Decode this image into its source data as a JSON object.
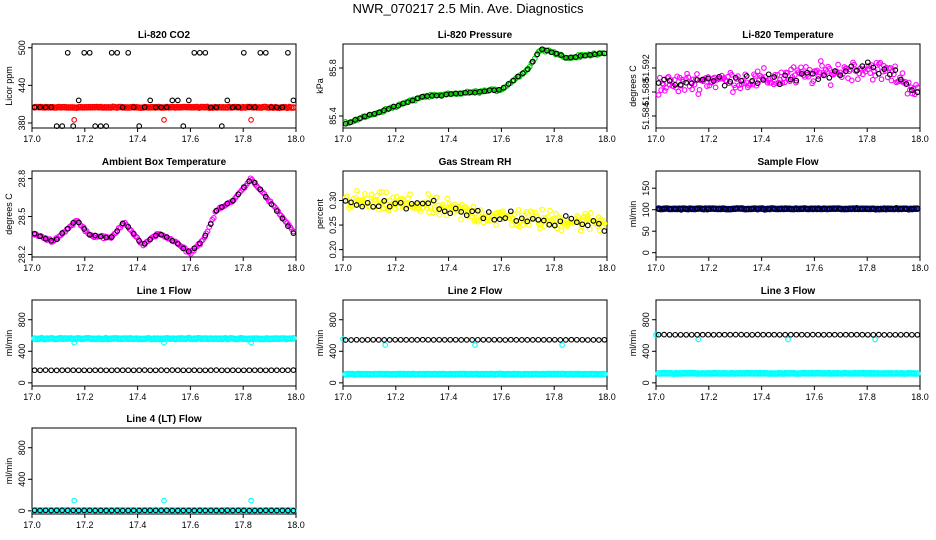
{
  "title": "NWR_070217  2.5 Min. Ave. Diagnostics",
  "chart_data": [
    {
      "id": "co2",
      "type": "scatter",
      "title": "Li-820 CO2",
      "ylabel": "Licor ppm",
      "xlim": [
        17.0,
        18.0
      ],
      "ylim": [
        372,
        506
      ],
      "xticks": [
        "17.0",
        "17.2",
        "17.4",
        "17.6",
        "17.8",
        "18.0"
      ],
      "yticks": [
        "380",
        "440",
        "500"
      ],
      "series": [
        {
          "color": "#ff0000",
          "pattern": "flat",
          "n": 130,
          "base": 405,
          "noise": 1,
          "marker": "dense"
        },
        {
          "color": "#ff0000",
          "points": [
            [
              17.16,
              385
            ],
            [
              17.5,
              385
            ],
            [
              17.83,
              385
            ]
          ]
        },
        {
          "color": "#000000",
          "pattern": "levels",
          "n": 48,
          "levels": [
            375,
            405,
            416,
            492
          ],
          "marker": "open"
        }
      ]
    },
    {
      "id": "pressure",
      "type": "scatter",
      "title": "Li-820 Pressure",
      "ylabel": "kPa",
      "xlim": [
        17.0,
        18.0
      ],
      "ylim": [
        85.3,
        86.0
      ],
      "xticks": [
        "17.0",
        "17.2",
        "17.4",
        "17.6",
        "17.8",
        "18.0"
      ],
      "yticks": [
        "85.4",
        "85.8"
      ],
      "series": [
        {
          "color": "#00cc00",
          "pattern": "curve",
          "n": 150,
          "curve": [
            [
              17.0,
              85.33
            ],
            [
              17.2,
              85.48
            ],
            [
              17.3,
              85.56
            ],
            [
              17.45,
              85.59
            ],
            [
              17.55,
              85.61
            ],
            [
              17.6,
              85.62
            ],
            [
              17.7,
              85.79
            ],
            [
              17.75,
              85.96
            ],
            [
              17.8,
              85.93
            ],
            [
              17.85,
              85.88
            ],
            [
              17.9,
              85.9
            ],
            [
              18.0,
              85.93
            ]
          ],
          "noise": 0.015
        },
        {
          "color": "#000000",
          "pattern": "curve",
          "n": 55,
          "curve": [
            [
              17.0,
              85.33
            ],
            [
              17.2,
              85.48
            ],
            [
              17.3,
              85.56
            ],
            [
              17.45,
              85.59
            ],
            [
              17.55,
              85.61
            ],
            [
              17.6,
              85.62
            ],
            [
              17.7,
              85.79
            ],
            [
              17.75,
              85.96
            ],
            [
              17.8,
              85.93
            ],
            [
              17.85,
              85.88
            ],
            [
              17.9,
              85.9
            ],
            [
              18.0,
              85.93
            ]
          ],
          "noise": 0.008
        }
      ]
    },
    {
      "id": "licor-temp",
      "type": "scatter",
      "title": "Li-820 Temperature",
      "ylabel": "degrees C",
      "xlim": [
        17.0,
        18.0
      ],
      "ylim": [
        51.582,
        51.596
      ],
      "xticks": [
        "17.0",
        "17.2",
        "17.4",
        "17.6",
        "17.8",
        "18.0"
      ],
      "yticks": [
        "51.584",
        "51.588",
        "51.592"
      ],
      "series": [
        {
          "color": "#ff00ff",
          "pattern": "curve",
          "n": 210,
          "curve": [
            [
              17.0,
              51.589
            ],
            [
              17.2,
              51.59
            ],
            [
              17.4,
              51.59
            ],
            [
              17.6,
              51.591
            ],
            [
              17.8,
              51.592
            ],
            [
              17.9,
              51.591
            ],
            [
              18.0,
              51.588
            ]
          ],
          "noise": 0.0025
        },
        {
          "color": "#000000",
          "pattern": "curve",
          "n": 48,
          "curve": [
            [
              17.0,
              51.589
            ],
            [
              17.2,
              51.59
            ],
            [
              17.4,
              51.59
            ],
            [
              17.6,
              51.591
            ],
            [
              17.8,
              51.592
            ],
            [
              17.9,
              51.591
            ],
            [
              18.0,
              51.587
            ]
          ],
          "noise": 0.0015
        }
      ]
    },
    {
      "id": "ambient-temp",
      "type": "scatter",
      "title": "Ambient Box Temperature",
      "ylabel": "degrees C",
      "xlim": [
        17.0,
        18.0
      ],
      "ylim": [
        28.18,
        28.86
      ],
      "xticks": [
        "17.0",
        "17.2",
        "17.4",
        "17.6",
        "17.8",
        "18.0"
      ],
      "yticks": [
        "28.2",
        "28.5",
        "28.8"
      ],
      "series": [
        {
          "color": "#ff00ff",
          "pattern": "curve",
          "n": 170,
          "curve": [
            [
              17.0,
              28.37
            ],
            [
              17.08,
              28.3
            ],
            [
              17.17,
              28.47
            ],
            [
              17.22,
              28.35
            ],
            [
              17.3,
              28.33
            ],
            [
              17.35,
              28.46
            ],
            [
              17.42,
              28.27
            ],
            [
              17.48,
              28.37
            ],
            [
              17.54,
              28.3
            ],
            [
              17.6,
              28.21
            ],
            [
              17.65,
              28.32
            ],
            [
              17.7,
              28.55
            ],
            [
              17.76,
              28.62
            ],
            [
              17.83,
              28.8
            ],
            [
              17.9,
              28.62
            ],
            [
              18.0,
              28.36
            ]
          ],
          "noise": 0.015
        },
        {
          "color": "#000000",
          "pattern": "curve",
          "n": 48,
          "curve": [
            [
              17.0,
              28.37
            ],
            [
              17.08,
              28.3
            ],
            [
              17.17,
              28.47
            ],
            [
              17.22,
              28.35
            ],
            [
              17.3,
              28.33
            ],
            [
              17.35,
              28.46
            ],
            [
              17.42,
              28.27
            ],
            [
              17.48,
              28.37
            ],
            [
              17.54,
              28.3
            ],
            [
              17.6,
              28.21
            ],
            [
              17.65,
              28.32
            ],
            [
              17.7,
              28.55
            ],
            [
              17.76,
              28.62
            ],
            [
              17.83,
              28.8
            ],
            [
              17.9,
              28.62
            ],
            [
              18.0,
              28.34
            ]
          ],
          "noise": 0.01
        }
      ]
    },
    {
      "id": "rh",
      "type": "scatter",
      "title": "Gas Stream RH",
      "ylabel": "percent",
      "xlim": [
        17.0,
        18.0
      ],
      "ylim": [
        0.185,
        0.36
      ],
      "xticks": [
        "17.0",
        "17.2",
        "17.4",
        "17.6",
        "17.8",
        "18.0"
      ],
      "yticks": [
        "0.20",
        "0.25",
        "0.30"
      ],
      "series": [
        {
          "color": "#ffff00",
          "pattern": "curve",
          "n": 230,
          "curve": [
            [
              17.0,
              0.3
            ],
            [
              17.3,
              0.29
            ],
            [
              17.6,
              0.265
            ],
            [
              18.0,
              0.255
            ]
          ],
          "noise": 0.03
        },
        {
          "color": "#000000",
          "pattern": "curve",
          "n": 48,
          "curve": [
            [
              17.0,
              0.3
            ],
            [
              17.3,
              0.29
            ],
            [
              17.6,
              0.265
            ],
            [
              18.0,
              0.25
            ]
          ],
          "noise": 0.02
        }
      ]
    },
    {
      "id": "sample-flow",
      "type": "scatter",
      "title": "Sample Flow",
      "ylabel": "ml/min",
      "xlim": [
        17.0,
        18.0
      ],
      "ylim": [
        -10,
        190
      ],
      "xticks": [
        "17.0",
        "17.2",
        "17.4",
        "17.6",
        "17.8",
        "18.0"
      ],
      "yticks": [
        "0",
        "50",
        "100",
        "150"
      ],
      "series": [
        {
          "color": "#000080",
          "pattern": "flat",
          "n": 150,
          "base": 102,
          "noise": 1.5,
          "marker": "dense"
        },
        {
          "color": "#000000",
          "pattern": "flat",
          "n": 48,
          "base": 102,
          "noise": 1
        }
      ]
    },
    {
      "id": "line1-flow",
      "type": "scatter",
      "title": "Line 1 Flow",
      "ylabel": "ml/min",
      "xlim": [
        17.0,
        18.0
      ],
      "ylim": [
        -40,
        1050
      ],
      "xticks": [
        "17.0",
        "17.2",
        "17.4",
        "17.6",
        "17.8",
        "18.0"
      ],
      "yticks": [
        "0",
        "400",
        "800"
      ],
      "series": [
        {
          "color": "#00ffff",
          "pattern": "flat",
          "n": 150,
          "base": 560,
          "noise": 8,
          "marker": "dense"
        },
        {
          "color": "#00ffff",
          "points": [
            [
              17.16,
              510
            ],
            [
              17.5,
              510
            ],
            [
              17.83,
              510
            ]
          ]
        },
        {
          "color": "#000000",
          "pattern": "flat",
          "n": 48,
          "base": 160,
          "noise": 3
        }
      ]
    },
    {
      "id": "line2-flow",
      "type": "scatter",
      "title": "Line 2 Flow",
      "ylabel": "ml/min",
      "xlim": [
        17.0,
        18.0
      ],
      "ylim": [
        -40,
        1050
      ],
      "xticks": [
        "17.0",
        "17.2",
        "17.4",
        "17.6",
        "17.8",
        "18.0"
      ],
      "yticks": [
        "0",
        "400",
        "800"
      ],
      "series": [
        {
          "color": "#00ffff",
          "pattern": "flat",
          "n": 150,
          "base": 110,
          "noise": 5,
          "marker": "dense"
        },
        {
          "color": "#00ffff",
          "points": [
            [
              17.0,
              555
            ],
            [
              17.16,
              480
            ],
            [
              17.5,
              480
            ],
            [
              17.83,
              480
            ]
          ]
        },
        {
          "color": "#000000",
          "pattern": "flat",
          "n": 48,
          "base": 545,
          "noise": 3
        }
      ]
    },
    {
      "id": "line3-flow",
      "type": "scatter",
      "title": "Line 3 Flow",
      "ylabel": "ml/min",
      "xlim": [
        17.0,
        18.0
      ],
      "ylim": [
        -40,
        1050
      ],
      "xticks": [
        "17.0",
        "17.2",
        "17.4",
        "17.6",
        "17.8",
        "18.0"
      ],
      "yticks": [
        "0",
        "400",
        "800"
      ],
      "series": [
        {
          "color": "#00ffff",
          "pattern": "flat",
          "n": 150,
          "base": 120,
          "noise": 5,
          "marker": "dense"
        },
        {
          "color": "#00ffff",
          "points": [
            [
              17.0,
              610
            ],
            [
              17.16,
              550
            ],
            [
              17.5,
              550
            ],
            [
              17.83,
              550
            ]
          ]
        },
        {
          "color": "#000000",
          "pattern": "flat",
          "n": 48,
          "base": 610,
          "noise": 3
        }
      ]
    },
    {
      "id": "line4-flow",
      "type": "scatter",
      "title": "Line 4 (LT) Flow",
      "ylabel": "ml/min",
      "xlim": [
        17.0,
        18.0
      ],
      "ylim": [
        -40,
        1050
      ],
      "xticks": [
        "17.0",
        "17.2",
        "17.4",
        "17.6",
        "17.8",
        "18.0"
      ],
      "yticks": [
        "0",
        "400",
        "800"
      ],
      "series": [
        {
          "color": "#00ffff",
          "pattern": "flat",
          "n": 150,
          "base": 5,
          "noise": 2,
          "marker": "dense"
        },
        {
          "color": "#00ffff",
          "points": [
            [
              17.16,
              130
            ],
            [
              17.5,
              130
            ],
            [
              17.83,
              130
            ]
          ]
        },
        {
          "color": "#000000",
          "pattern": "flat",
          "n": 48,
          "base": 5,
          "noise": 2
        }
      ]
    }
  ]
}
